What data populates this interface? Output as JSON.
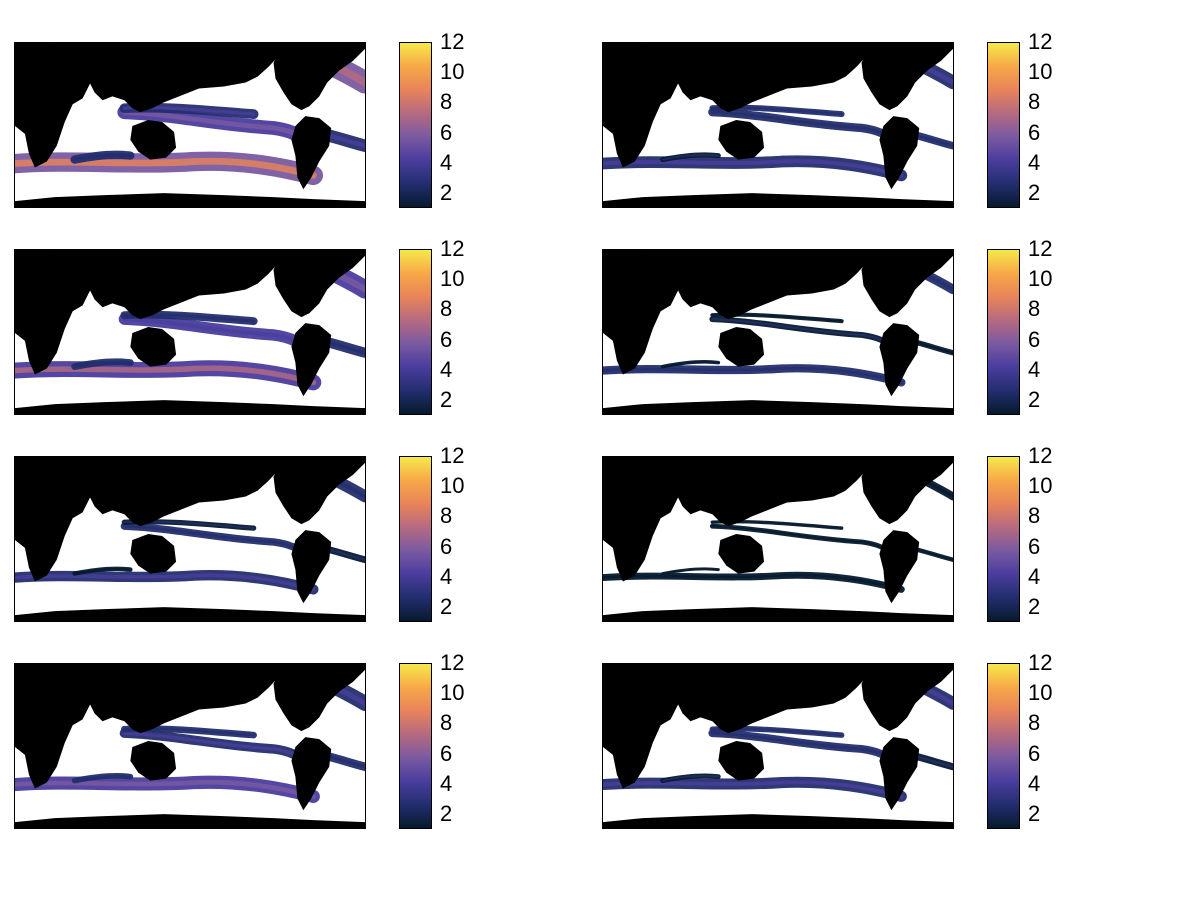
{
  "chart_data": {
    "type": "heatmap",
    "layout": {
      "rows": 4,
      "cols": 2
    },
    "colorbar": {
      "range": [
        1,
        12
      ],
      "ticks": [
        2,
        4,
        6,
        8,
        10,
        12
      ],
      "colormap": [
        "#061a2e",
        "#232e6e",
        "#4a3d9e",
        "#7a5aa0",
        "#b56a80",
        "#e8845a",
        "#f7a847",
        "#f5e94a"
      ]
    },
    "land_color": "#000000",
    "no_data_color": "#ffffff",
    "panels": [
      {
        "intensity": 1.0
      },
      {
        "intensity": 0.45
      },
      {
        "intensity": 0.75
      },
      {
        "intensity": 0.2
      },
      {
        "intensity": 0.35
      },
      {
        "intensity": 0.1
      },
      {
        "intensity": 0.55
      },
      {
        "intensity": 0.4
      }
    ]
  }
}
